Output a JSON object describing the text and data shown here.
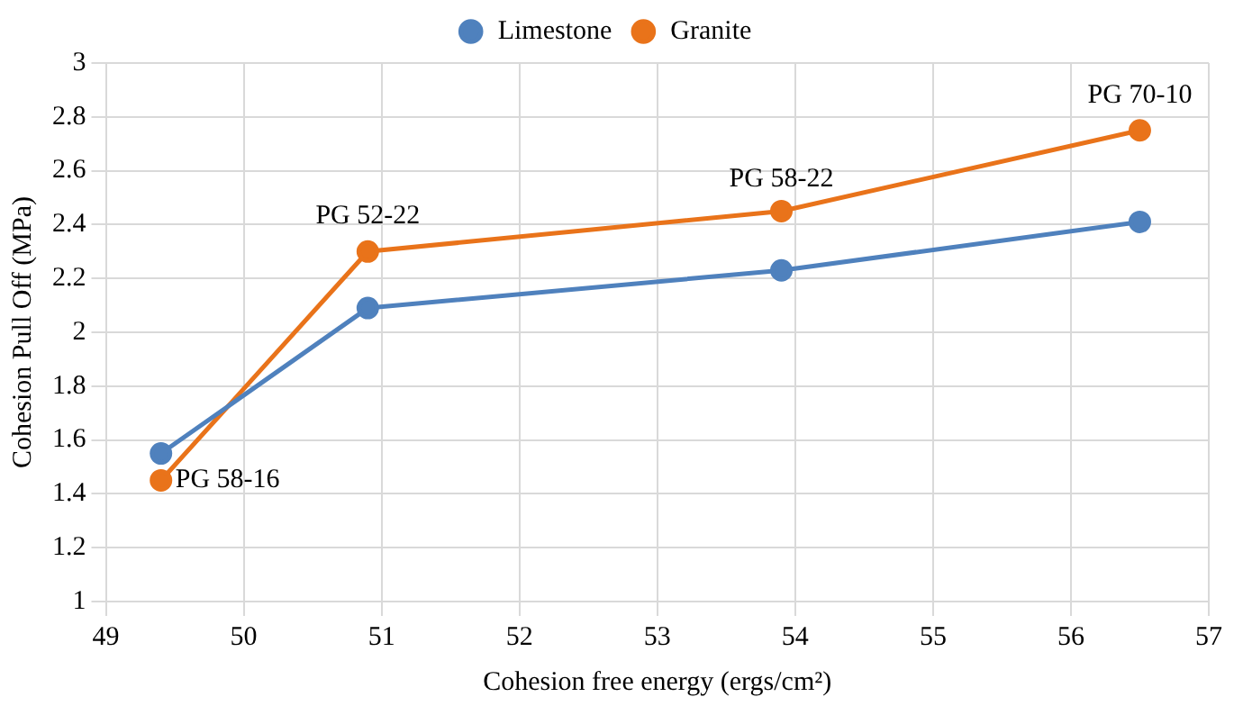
{
  "chart_data": {
    "type": "line",
    "xlabel": "Cohesion free energy (ergs/cm²)",
    "ylabel": "Cohesion Pull Off (MPa)",
    "x": [
      49.4,
      50.9,
      53.9,
      56.5
    ],
    "series": [
      {
        "name": "Limestone",
        "color": "#4f81bd",
        "values": [
          1.55,
          2.09,
          2.23,
          2.41
        ]
      },
      {
        "name": "Granite",
        "color": "#e9731a",
        "values": [
          1.45,
          2.3,
          2.45,
          2.75
        ]
      }
    ],
    "annotations": [
      {
        "text": "PG 58-16",
        "x": 49.4,
        "y": 1.45
      },
      {
        "text": "PG 52-22",
        "x": 50.9,
        "y": 2.3
      },
      {
        "text": "PG 58-22",
        "x": 53.9,
        "y": 2.45
      },
      {
        "text": "PG 70-10",
        "x": 56.5,
        "y": 2.75
      }
    ],
    "xlim": [
      49,
      57
    ],
    "xticks": [
      49,
      50,
      51,
      52,
      53,
      54,
      55,
      56,
      57
    ],
    "ylim": [
      1,
      3
    ],
    "yticks": [
      1,
      1.2,
      1.4,
      1.6,
      1.8,
      2,
      2.2,
      2.4,
      2.6,
      2.8,
      3
    ],
    "grid": true,
    "legend": "top",
    "marker": "circle",
    "line_style": "solid"
  }
}
